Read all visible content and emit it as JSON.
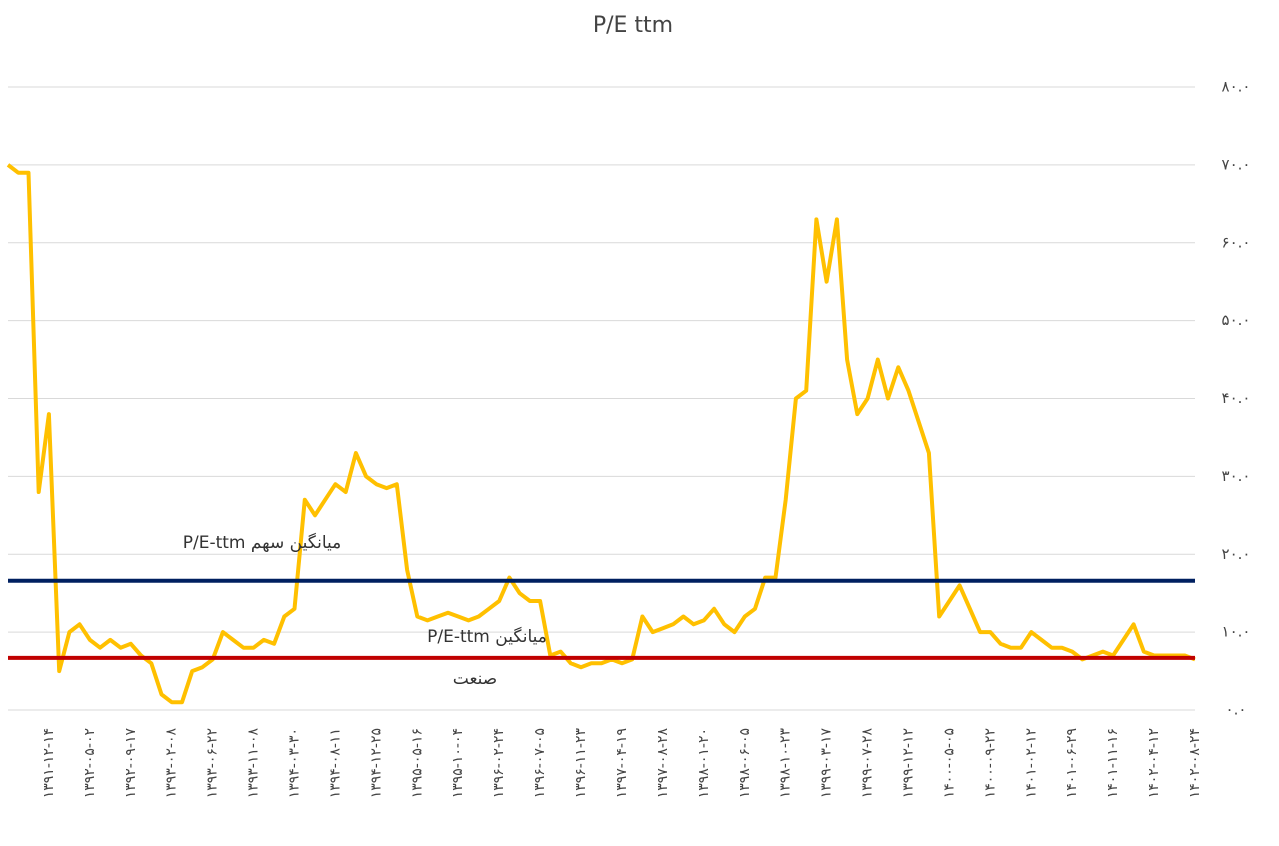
{
  "chart_data": {
    "type": "line",
    "title": "P/E ttm",
    "categories": [
      null,
      null,
      null,
      null,
      "۱۳۹۱-۱۲-۱۴",
      null,
      null,
      null,
      "۱۳۹۲-۰۵-۰۲",
      null,
      null,
      null,
      "۱۳۹۲-۰۹-۱۷",
      null,
      null,
      null,
      "۱۳۹۳-۰۲-۰۸",
      null,
      null,
      null,
      "۱۳۹۳-۰۶-۲۲",
      null,
      null,
      null,
      "۱۳۹۳-۱۱-۰۸",
      null,
      null,
      null,
      "۱۳۹۴-۰۳-۳۰",
      null,
      null,
      null,
      "۱۳۹۴-۰۸-۱۱",
      null,
      null,
      null,
      "۱۳۹۴-۱۲-۲۵",
      null,
      null,
      null,
      "۱۳۹۵-۰۵-۱۶",
      null,
      null,
      null,
      "۱۳۹۵-۱۰-۰۴",
      null,
      null,
      null,
      "۱۳۹۶-۰۲-۲۴",
      null,
      null,
      null,
      "۱۳۹۶-۰۷-۰۵",
      null,
      null,
      null,
      "۱۳۹۶-۱۱-۲۳",
      null,
      null,
      null,
      "۱۳۹۷-۰۴-۱۹",
      null,
      null,
      null,
      "۱۳۹۷-۰۸-۲۸",
      null,
      null,
      null,
      "۱۳۹۸-۰۱-۲۰",
      null,
      null,
      null,
      "۱۳۹۸-۰۶-۰۵",
      null,
      null,
      null,
      "۱۳۹۸-۱۰-۲۳",
      null,
      null,
      null,
      "۱۳۹۹-۰۳-۱۷",
      null,
      null,
      null,
      "۱۳۹۹-۰۷-۲۸",
      null,
      null,
      null,
      "۱۳۹۹-۱۲-۱۲",
      null,
      null,
      null,
      "۱۴۰۰-۰۵-۰۵",
      null,
      null,
      null,
      "۱۴۰۰-۰۹-۲۲",
      null,
      null,
      null,
      "۱۴۰۱-۰۲-۱۲",
      null,
      null,
      null,
      "۱۴۰۱-۰۶-۲۹",
      null,
      null,
      null,
      "۱۴۰۱-۱۱-۱۶",
      null,
      null,
      null,
      "۱۴۰۲-۰۴-۱۲",
      null,
      null,
      null,
      "۱۴۰۲-۰۸-۲۴"
    ],
    "series": [
      {
        "color": "#FFC000",
        "values": [
          70,
          69,
          69,
          28,
          38,
          5,
          10,
          11,
          9,
          8,
          9,
          8,
          8.5,
          7,
          6,
          2,
          1,
          1,
          5,
          5.5,
          6.5,
          10,
          9,
          8,
          8,
          9,
          8.5,
          12,
          13,
          27,
          25,
          27,
          29,
          28,
          33,
          30,
          29,
          28.5,
          29,
          18,
          12,
          11.5,
          12,
          12.5,
          12,
          11.5,
          12,
          13,
          14,
          17,
          15,
          14,
          14,
          7,
          7.5,
          6,
          5.5,
          6,
          6,
          6.5,
          6,
          6.5,
          12,
          10,
          10.5,
          11,
          12,
          11,
          11.5,
          13,
          11,
          10,
          12,
          13,
          17,
          17,
          27,
          40,
          41,
          63,
          55,
          63,
          45,
          38,
          40,
          45,
          40,
          44,
          41,
          37,
          33,
          12,
          14,
          16,
          13,
          10,
          10,
          8.5,
          8,
          8,
          10,
          9,
          8,
          8,
          7.5,
          6.5,
          7,
          7.5,
          7,
          9,
          11,
          7.5,
          7,
          7,
          7,
          7,
          6.5
        ]
      }
    ],
    "reference_lines": [
      {
        "value": 16.6,
        "color": "#002060",
        "label": [
          "میانگین سهم P/E-ttm"
        ]
      },
      {
        "value": 6.7,
        "color": "#C00000",
        "label": [
          "میانگین P/E-ttm",
          "صنعت"
        ]
      }
    ],
    "ylim": [
      0,
      80
    ],
    "yticks": [
      {
        "value": 0,
        "label": "۰.۰"
      },
      {
        "value": 10,
        "label": "۱۰.۰"
      },
      {
        "value": 20,
        "label": "۲۰.۰"
      },
      {
        "value": 30,
        "label": "۳۰.۰"
      },
      {
        "value": 40,
        "label": "۴۰.۰"
      },
      {
        "value": 50,
        "label": "۵۰.۰"
      },
      {
        "value": 60,
        "label": "۶۰.۰"
      },
      {
        "value": 70,
        "label": "۷۰.۰"
      },
      {
        "value": 80,
        "label": "۸۰.۰"
      }
    ],
    "grid": true
  }
}
